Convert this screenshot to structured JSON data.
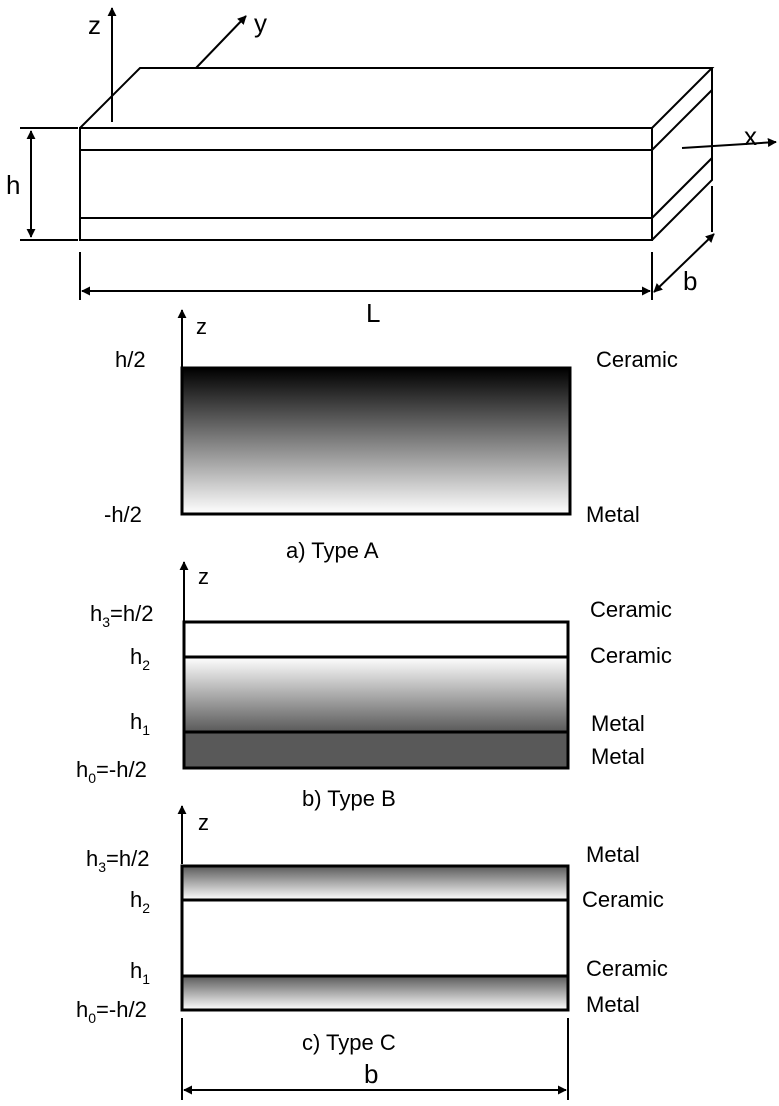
{
  "beam": {
    "axis_z": "z",
    "axis_y": "y",
    "axis_x": "x",
    "height_label": "h",
    "length_label": "L",
    "width_label": "b"
  },
  "type_a": {
    "axis": "z",
    "top_label": "h/2",
    "bottom_label": "-h/2",
    "top_material": "Ceramic",
    "bottom_material": "Metal",
    "caption": "a) Type A"
  },
  "type_b": {
    "axis": "z",
    "h3_base": "h",
    "h3_sub": "3",
    "h3_rest": "=h/2",
    "h2_base": "h",
    "h2_sub": "2",
    "h1_base": "h",
    "h1_sub": "1",
    "h0_base": "h",
    "h0_sub": "0",
    "h0_rest": "=-h/2",
    "materials": [
      "Ceramic",
      "Ceramic",
      "Metal",
      "Metal"
    ],
    "caption": "b) Type B"
  },
  "type_c": {
    "axis": "z",
    "h3_base": "h",
    "h3_sub": "3",
    "h3_rest": "=h/2",
    "h2_base": "h",
    "h2_sub": "2",
    "h1_base": "h",
    "h1_sub": "1",
    "h0_base": "h",
    "h0_sub": "0",
    "h0_rest": "=-h/2",
    "materials": [
      "Metal",
      "Ceramic",
      "Ceramic",
      "Metal"
    ],
    "caption": "c) Type C"
  },
  "width_dimension_label": "b",
  "colors": {
    "ceramic": "#000000",
    "metal": "#ffffff",
    "dark_metal": "#595959"
  }
}
